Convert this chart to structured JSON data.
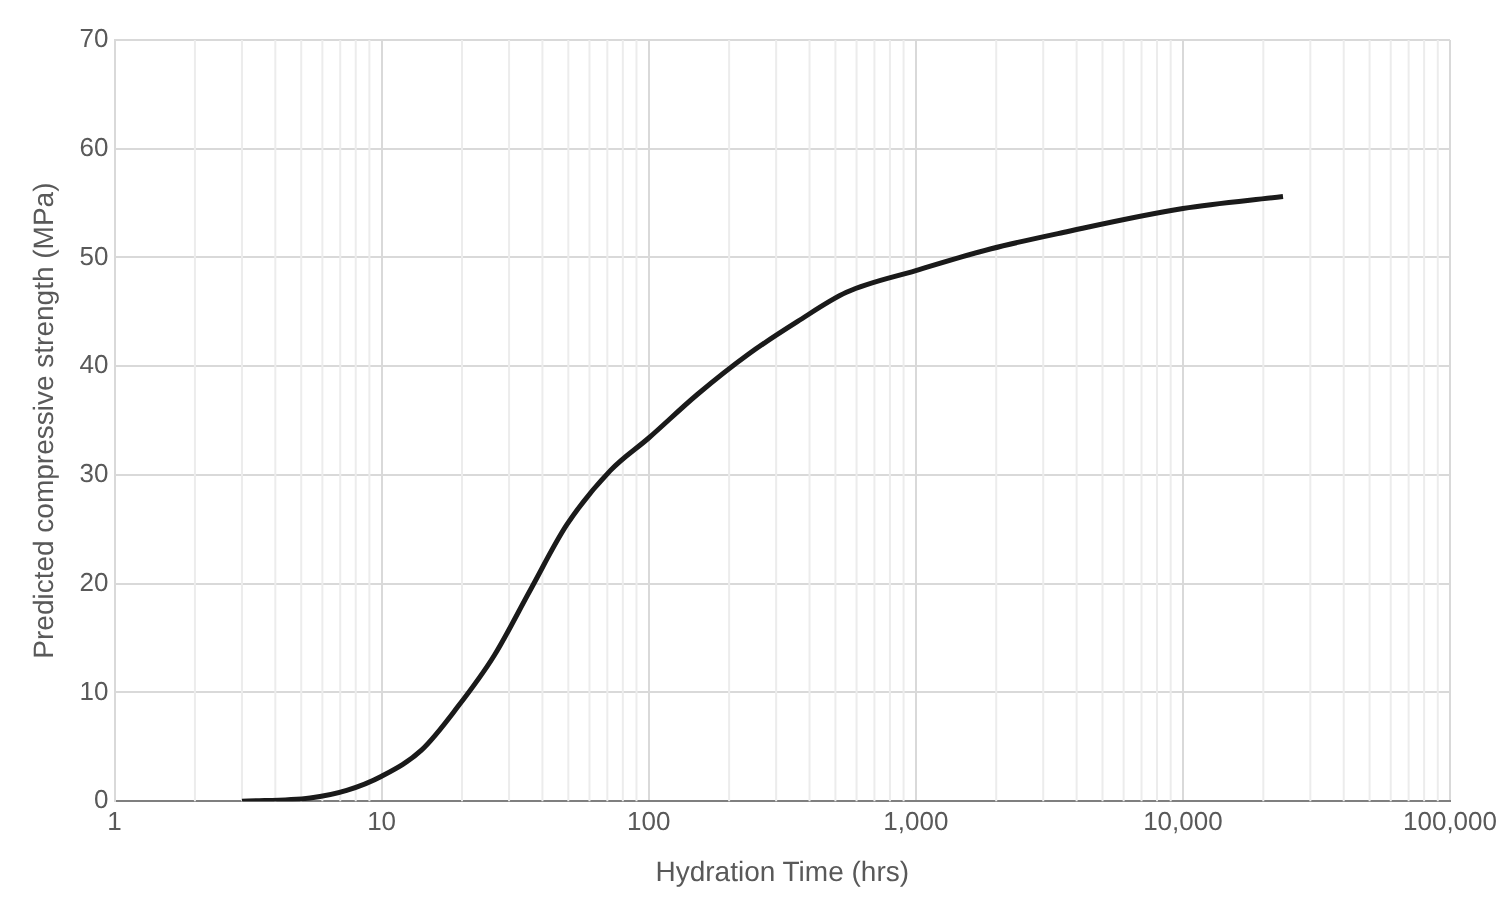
{
  "chart_data": {
    "type": "line",
    "xlabel": "Hydration Time (hrs)",
    "ylabel": "Predicted compressive strength (MPa)",
    "series": [
      {
        "color": "#1a1a1a",
        "x": [
          3.0,
          5.4,
          7.4,
          10,
          14.1,
          19.3,
          26.4,
          36,
          49.3,
          71.8,
          100,
          152,
          236,
          360,
          550,
          1000,
          1915,
          3560,
          10000,
          23700
        ],
        "values": [
          0,
          0.3,
          1.0,
          2.3,
          4.7,
          8.7,
          13.4,
          19.4,
          25.4,
          30.4,
          33.4,
          37.4,
          41.1,
          44.1,
          46.8,
          48.8,
          50.8,
          52.3,
          54.5,
          55.6
        ]
      }
    ],
    "log": "x",
    "xlim": [
      1,
      100000
    ],
    "xticks": [
      1,
      10,
      100,
      {
        "value": 1000,
        "label": "1,000"
      },
      {
        "value": 10000,
        "label": "10,000"
      },
      {
        "value": 100000,
        "label": "100,000"
      }
    ],
    "ylim": [
      0,
      70
    ],
    "yticks": [
      0,
      10,
      20,
      30,
      40,
      50,
      60,
      70
    ],
    "grid": true,
    "legend": false,
    "marker": "none",
    "line_style": "solid"
  }
}
